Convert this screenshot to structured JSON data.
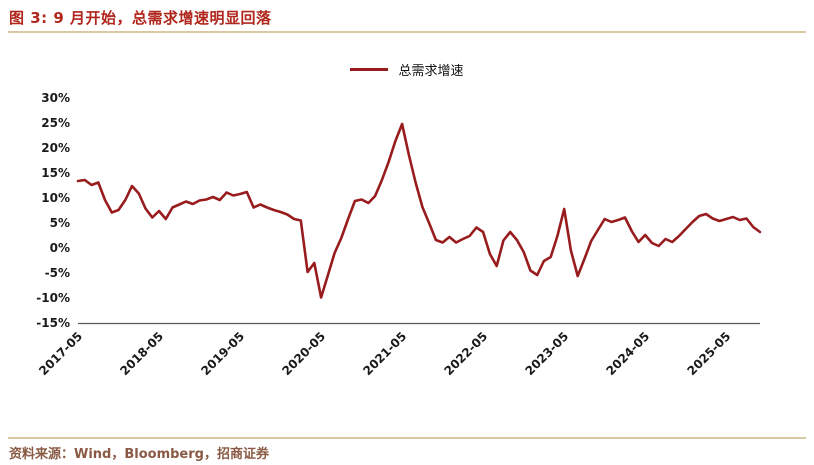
{
  "header": {
    "title": "图 3: 9 月开始，总需求增速明显回落"
  },
  "legend": {
    "label": "总需求增速"
  },
  "footer": {
    "source": "资料来源：Wind，Bloomberg，招商证券"
  },
  "colors": {
    "title": "#B0261C",
    "divider": "#D9C9A2",
    "source_text": "#8A5A44",
    "axis_line": "#595959",
    "axis_text": "#1A1A1A"
  },
  "chart_data": {
    "type": "line",
    "title": "9 月开始，总需求增速明显回落",
    "xlabel": "",
    "ylabel": "",
    "ylim": [
      -15,
      30
    ],
    "y_ticks": [
      30,
      25,
      20,
      15,
      10,
      5,
      0,
      -5,
      -10,
      -15
    ],
    "y_tick_suffix": "%",
    "x_ticks": [
      "2017-05",
      "2018-05",
      "2019-05",
      "2020-05",
      "2021-05",
      "2022-05",
      "2023-05",
      "2024-05",
      "2025-05"
    ],
    "grid": false,
    "legend_position": "top",
    "x": [
      "2017-05",
      "2017-06",
      "2017-07",
      "2017-08",
      "2017-09",
      "2017-10",
      "2017-11",
      "2017-12",
      "2018-01",
      "2018-02",
      "2018-03",
      "2018-04",
      "2018-05",
      "2018-06",
      "2018-07",
      "2018-08",
      "2018-09",
      "2018-10",
      "2018-11",
      "2018-12",
      "2019-01",
      "2019-02",
      "2019-03",
      "2019-04",
      "2019-05",
      "2019-06",
      "2019-07",
      "2019-08",
      "2019-09",
      "2019-10",
      "2019-11",
      "2019-12",
      "2020-01",
      "2020-02",
      "2020-03",
      "2020-04",
      "2020-05",
      "2020-06",
      "2020-07",
      "2020-08",
      "2020-09",
      "2020-10",
      "2020-11",
      "2020-12",
      "2021-01",
      "2021-02",
      "2021-03",
      "2021-04",
      "2021-05",
      "2021-06",
      "2021-07",
      "2021-08",
      "2021-09",
      "2021-10",
      "2021-11",
      "2021-12",
      "2022-01",
      "2022-02",
      "2022-03",
      "2022-04",
      "2022-05",
      "2022-06",
      "2022-07",
      "2022-08",
      "2022-09",
      "2022-10",
      "2022-11",
      "2022-12",
      "2023-01",
      "2023-02",
      "2023-03",
      "2023-04",
      "2023-05",
      "2023-06",
      "2023-07",
      "2023-08",
      "2023-09",
      "2023-10",
      "2023-11",
      "2023-12",
      "2024-01",
      "2024-02",
      "2024-03",
      "2024-04",
      "2024-05",
      "2024-06",
      "2024-07",
      "2024-08",
      "2024-09",
      "2024-10",
      "2024-11",
      "2024-12",
      "2025-01",
      "2025-02",
      "2025-03",
      "2025-04",
      "2025-05",
      "2025-06",
      "2025-07",
      "2025-08",
      "2025-09",
      "2025-10"
    ],
    "series": [
      {
        "name": "总需求增速",
        "color": "#981C1E",
        "values": [
          13.4,
          13.6,
          12.6,
          13.1,
          9.6,
          7.1,
          7.6,
          9.6,
          12.4,
          10.9,
          7.9,
          6.1,
          7.4,
          5.8,
          8.1,
          8.7,
          9.3,
          8.8,
          9.5,
          9.7,
          10.2,
          9.6,
          11.1,
          10.5,
          10.8,
          11.2,
          8.1,
          8.7,
          8.1,
          7.6,
          7.2,
          6.7,
          5.8,
          5.5,
          -4.8,
          -3.0,
          -9.9,
          -5.5,
          -1.0,
          2.0,
          5.8,
          9.4,
          9.7,
          9.0,
          10.4,
          13.6,
          17.2,
          21.4,
          24.8,
          18.6,
          13.1,
          8.2,
          5.0,
          1.6,
          1.1,
          2.2,
          1.1,
          1.8,
          2.4,
          4.1,
          3.2,
          -1.2,
          -3.6,
          1.5,
          3.2,
          1.6,
          -0.8,
          -4.5,
          -5.4,
          -2.6,
          -1.8,
          2.4,
          7.8,
          -0.5,
          -5.6,
          -2.2,
          1.4,
          3.6,
          5.8,
          5.2,
          5.6,
          6.1,
          3.4,
          1.2,
          2.6,
          1.0,
          0.4,
          1.8,
          1.2,
          2.4,
          3.8,
          5.2,
          6.4,
          6.8,
          5.9,
          5.4,
          5.8,
          6.2,
          5.6,
          5.9,
          4.2,
          3.2
        ]
      }
    ]
  }
}
